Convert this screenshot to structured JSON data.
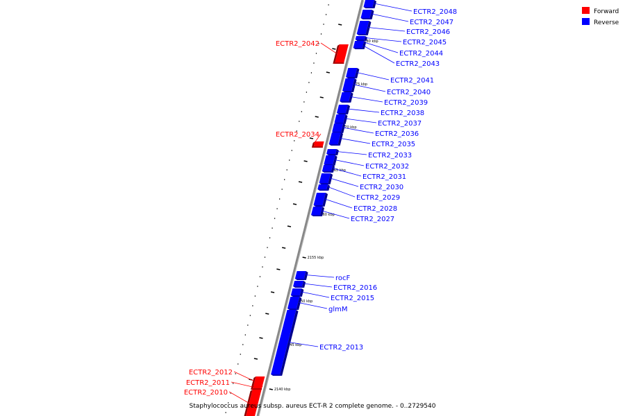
{
  "caption": "Staphylococcus aureus subsp. aureus ECT-R 2 complete genome. - 0..2729540",
  "legend": [
    {
      "label": "Forward",
      "color": "#ff0000"
    },
    {
      "label": "Reverse",
      "color": "#0000ff"
    }
  ],
  "scale_ticks": [
    "2140 kbp",
    "2145 kbp",
    "2150 kbp",
    "2155 kbp",
    "2160 kbp",
    "2165 kbp",
    "2170 kbp",
    "2175 kbp",
    "2180 kbp"
  ],
  "reverse_genes": [
    "ECTR2_2048",
    "ECTR2_2047",
    "ECTR2_2046",
    "ECTR2_2045",
    "ECTR2_2044",
    "ECTR2_2043",
    "ECTR2_2041",
    "ECTR2_2040",
    "ECTR2_2039",
    "ECTR2_2038",
    "ECTR2_2037",
    "ECTR2_2036",
    "ECTR2_2035",
    "ECTR2_2033",
    "ECTR2_2032",
    "ECTR2_2031",
    "ECTR2_2030",
    "ECTR2_2029",
    "ECTR2_2028",
    "ECTR2_2027",
    "rocF",
    "ECTR2_2016",
    "ECTR2_2015",
    "glmM",
    "ECTR2_2013"
  ],
  "forward_genes": [
    "ECTR2_2042",
    "ECTR2_2034",
    "ECTR2_2012",
    "ECTR2_2011",
    "ECTR2_2010"
  ]
}
